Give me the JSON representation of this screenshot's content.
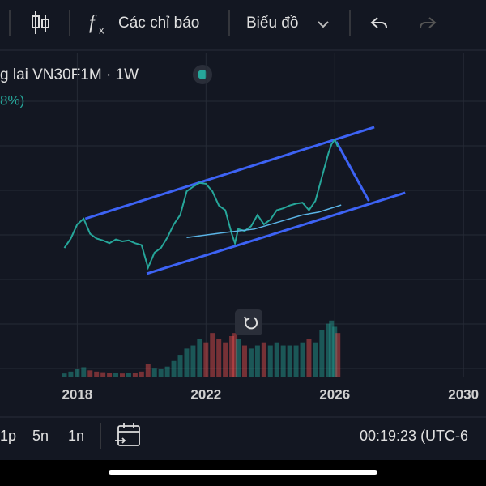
{
  "toolbar": {
    "indicators": "Các chỉ báo",
    "chart": "Biểu đồ"
  },
  "legend": {
    "symbol": "g lai VN30F1M · 1W",
    "change": "8%)"
  },
  "chart_data": {
    "type": "candle-line",
    "x": [
      2017.6,
      2017.8,
      2018.0,
      2018.2,
      2018.4,
      2018.6,
      2018.8,
      2019.0,
      2019.2,
      2019.4,
      2019.6,
      2019.8,
      2020.0,
      2020.2,
      2020.4,
      2020.6,
      2020.8,
      2021.0,
      2021.2,
      2021.4,
      2021.6,
      2021.8,
      2022.0,
      2022.2,
      2022.4,
      2022.6,
      2022.8,
      2022.9,
      2023.0,
      2023.2,
      2023.4,
      2023.6,
      2023.8,
      2024.0,
      2024.2,
      2024.4,
      2024.6,
      2024.8,
      2025.0,
      2025.2,
      2025.4,
      2025.6,
      2025.8,
      2025.9,
      2026.0,
      2026.1
    ],
    "series": [
      {
        "color": "#26a69a",
        "values": [
          850,
          950,
          1100,
          1160,
          1000,
          950,
          930,
          900,
          940,
          920,
          930,
          900,
          880,
          640,
          800,
          850,
          960,
          1100,
          1200,
          1450,
          1500,
          1540,
          1530,
          1450,
          1300,
          1250,
          1000,
          900,
          1050,
          1030,
          1080,
          1200,
          1100,
          1150,
          1250,
          1270,
          1300,
          1320,
          1330,
          1250,
          1350,
          1600,
          1850,
          1950,
          2000,
          1920
        ]
      },
      {
        "color": "#5ab4e6",
        "x": [
          2021.4,
          2022.5,
          2023.5,
          2024.5,
          2025.0,
          2025.5,
          2026.2
        ],
        "values": [
          960,
          1010,
          1050,
          1150,
          1200,
          1230,
          1305
        ]
      }
    ],
    "volume": [
      5,
      8,
      12,
      15,
      10,
      8,
      7,
      6,
      6,
      5,
      6,
      6,
      8,
      20,
      14,
      12,
      16,
      25,
      35,
      45,
      50,
      60,
      55,
      70,
      60,
      55,
      65,
      70,
      60,
      50,
      45,
      50,
      55,
      50,
      55,
      50,
      50,
      50,
      55,
      60,
      55,
      75,
      85,
      90,
      80,
      70
    ],
    "volume_lim": [
      0,
      130
    ],
    "drawings": [
      {
        "color": "#3d63f5",
        "x": [
          2018.25,
          2027.23
        ],
        "values": [
          1160,
          2131
        ]
      },
      {
        "color": "#3d63f5",
        "x": [
          2020.16,
          2028.19
        ],
        "values": [
          576,
          1435
        ]
      },
      {
        "color": "#3d63f5",
        "x": [
          2026.05,
          2027.06
        ],
        "values": [
          1976,
          1349
        ]
      }
    ],
    "xlim": [
      2015.6,
      2030.7
    ],
    "xticks": [
      2018,
      2022,
      2026,
      2030
    ],
    "ylim": [
      -515,
      2921
    ],
    "up_color": "#26a69a",
    "down_color": "#ef5350"
  },
  "footer": {
    "intervals": [
      "1p",
      "5n",
      "1n"
    ],
    "clock": "00:19:23 (UTC-6"
  }
}
